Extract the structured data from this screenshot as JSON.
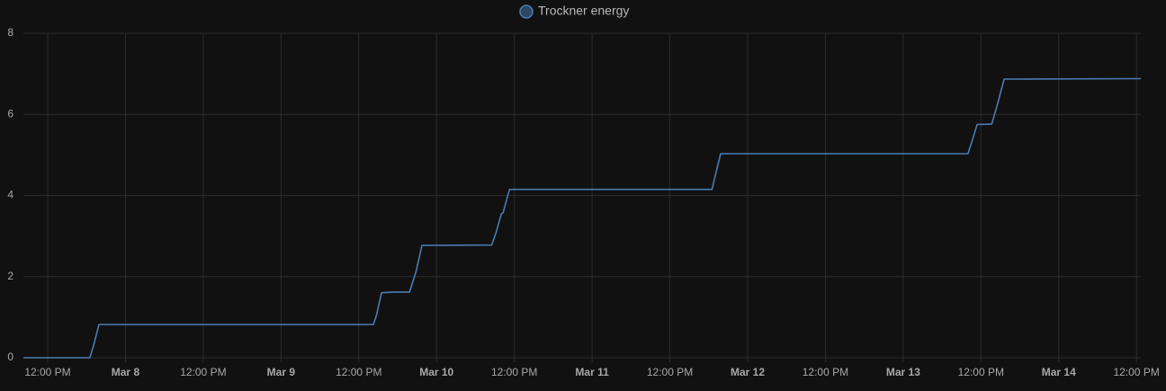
{
  "chart_data": {
    "type": "line",
    "series": [
      {
        "name": "Trockner energy",
        "color": "#4a7cb3",
        "x": [
          "Mar 7 08:15",
          "Mar 7 18:30",
          "Mar 7 19:05",
          "Mar 7 19:55",
          "Mar 9 14:15",
          "Mar 9 14:45",
          "Mar 9 15:30",
          "Mar 9 17:10",
          "Mar 9 19:50",
          "Mar 9 20:50",
          "Mar 9 21:45",
          "Mar 10 08:30",
          "Mar 10 09:10",
          "Mar 10 10:00",
          "Mar 10 10:15",
          "Mar 10 11:15",
          "Mar 11 18:30",
          "Mar 11 18:50",
          "Mar 11 19:50",
          "Mar 13 10:00",
          "Mar 13 10:35",
          "Mar 13 11:25",
          "Mar 13 13:40",
          "Mar 13 14:30",
          "Mar 13 15:35",
          "Mar 14 12:40"
        ],
        "values": [
          0,
          0,
          0.3,
          0.82,
          0.82,
          1.06,
          1.6,
          1.62,
          1.62,
          2.12,
          2.77,
          2.78,
          3.08,
          3.55,
          3.57,
          4.15,
          4.15,
          4.38,
          5.03,
          5.03,
          5.32,
          5.75,
          5.76,
          6.22,
          6.87,
          6.88
        ]
      }
    ],
    "xlim": [
      "Mar 7 08:15",
      "Mar 14 12:40"
    ],
    "xticks": [
      {
        "value": "Mar 7 12:00",
        "label": "12:00 PM"
      },
      {
        "value": "Mar 8 00:00",
        "label": "Mar 8"
      },
      {
        "value": "Mar 8 12:00",
        "label": "12:00 PM"
      },
      {
        "value": "Mar 9 00:00",
        "label": "Mar 9"
      },
      {
        "value": "Mar 9 12:00",
        "label": "12:00 PM"
      },
      {
        "value": "Mar 10 00:00",
        "label": "Mar 10"
      },
      {
        "value": "Mar 10 12:00",
        "label": "12:00 PM"
      },
      {
        "value": "Mar 11 00:00",
        "label": "Mar 11"
      },
      {
        "value": "Mar 11 12:00",
        "label": "12:00 PM"
      },
      {
        "value": "Mar 12 00:00",
        "label": "Mar 12"
      },
      {
        "value": "Mar 12 12:00",
        "label": "12:00 PM"
      },
      {
        "value": "Mar 13 00:00",
        "label": "Mar 13"
      },
      {
        "value": "Mar 13 12:00",
        "label": "12:00 PM"
      },
      {
        "value": "Mar 14 00:00",
        "label": "Mar 14"
      },
      {
        "value": "Mar 14 12:00",
        "label": "12:00 PM"
      }
    ],
    "ylim": [
      0,
      8
    ],
    "yticks": [
      0,
      2,
      4,
      6,
      8
    ],
    "grid": true,
    "legend": "top"
  }
}
